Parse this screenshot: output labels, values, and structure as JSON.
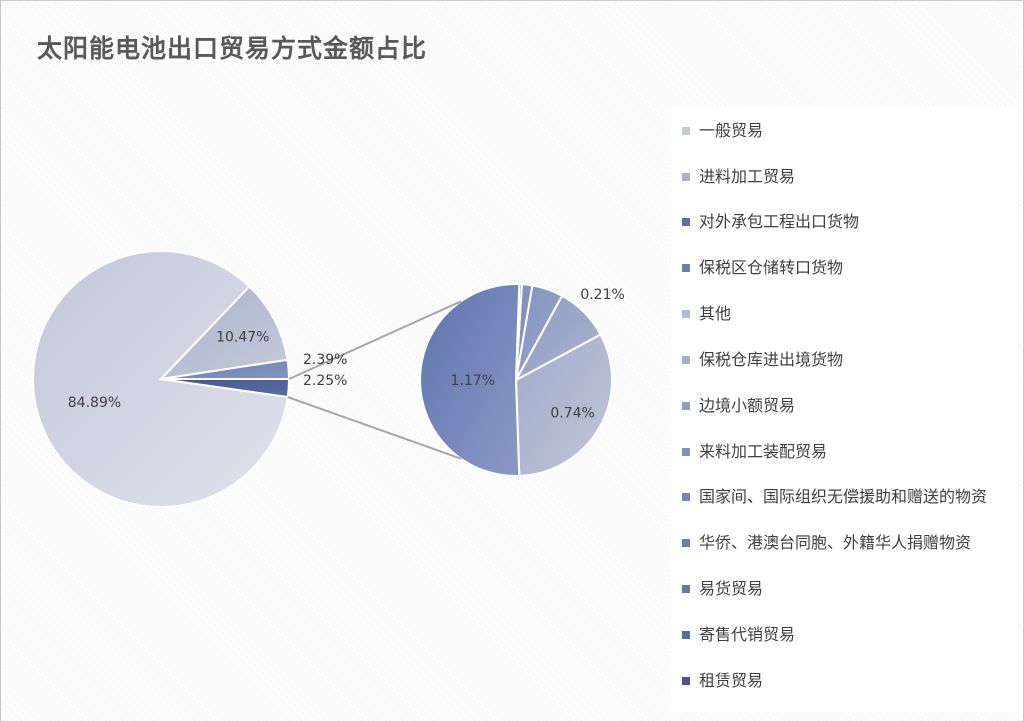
{
  "chart_data": {
    "type": "pie",
    "title": "太阳能电池出口贸易方式金额占比",
    "legend_position": "right",
    "categories": [
      "一般贸易",
      "进料加工贸易",
      "对外承包工程出口货物",
      "保税区仓储转口货物",
      "其他",
      "保税仓库进出境货物",
      "边境小额贸易",
      "来料加工装配贸易",
      "国家间、国际组织无偿援助和赠送的物资",
      "华侨、港澳台同胞、外籍华人捐赠物资",
      "易货贸易",
      "寄售代销贸易",
      "租赁贸易"
    ],
    "main_pie": {
      "labels": [
        "一般贸易",
        "进料加工贸易",
        "",
        ""
      ],
      "values": [
        84.89,
        10.47,
        2.39,
        2.25
      ],
      "value_labels": [
        "84.89%",
        "10.47%",
        "2.39%",
        "2.25%"
      ]
    },
    "secondary_pie": {
      "values": [
        0.74,
        0.21,
        0.12,
        0.04,
        0.01,
        1.17
      ],
      "value_labels": [
        "0.74%",
        "0.21%",
        "",
        "",
        "",
        "1.17%"
      ]
    },
    "colors": [
      "#d0d5e2",
      "#b4bdd4",
      "#6e82b4",
      "#4f66a0",
      "#bcc4d8",
      "#aab5d2",
      "#98a6cd",
      "#8898c7",
      "#7d8fc3",
      "#7287c0",
      "#6e82b4",
      "#5e74ac",
      "#45598f"
    ]
  },
  "legend_swatch_colors": [
    "#c6cbd8",
    "#a8b2cc",
    "#5c6f9e",
    "#6d7ea8",
    "#b1bbd3",
    "#a3aecb",
    "#8f9cc2",
    "#8290bb",
    "#7585b3",
    "#6b7cad",
    "#6777a6",
    "#5a6a9a",
    "#46568a"
  ]
}
